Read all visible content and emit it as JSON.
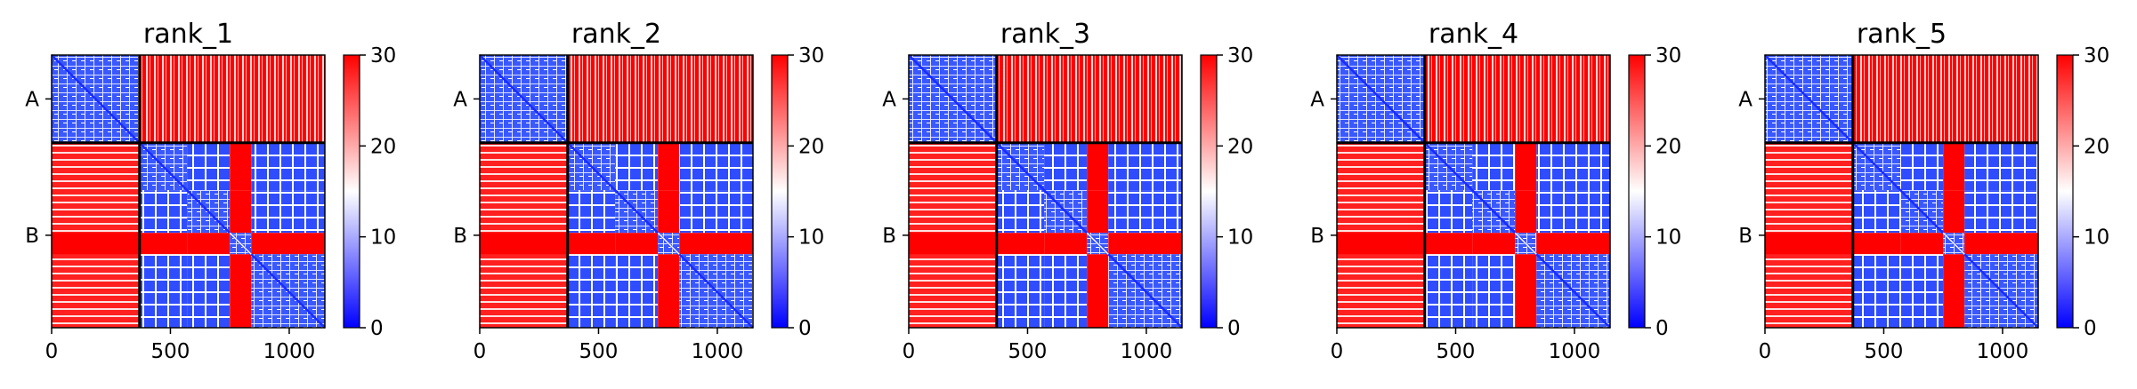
{
  "chart_data": {
    "type": "heatmap",
    "panels": [
      {
        "title": "rank_1"
      },
      {
        "title": "rank_2"
      },
      {
        "title": "rank_3"
      },
      {
        "title": "rank_4"
      },
      {
        "title": "rank_5"
      }
    ],
    "x_ticks": [
      "0",
      "500",
      "1000"
    ],
    "x_tick_values": [
      0,
      500,
      1000
    ],
    "x_range": [
      0,
      1150
    ],
    "y_ticks": [
      "A",
      "B"
    ],
    "chain_boundary": 370,
    "chain_b_blocks": [
      [
        370,
        570
      ],
      [
        570,
        750
      ],
      [
        750,
        840
      ],
      [
        840,
        1150
      ]
    ],
    "colorbar": {
      "ticks": [
        "0",
        "10",
        "20",
        "30"
      ],
      "tick_values": [
        0,
        10,
        20,
        30
      ],
      "range": [
        0,
        30
      ],
      "colormap": "bwr",
      "colors": {
        "low": "#0000ff",
        "mid": "#ffffff",
        "high": "#ff0000"
      }
    },
    "grid": false,
    "legend": "none"
  }
}
